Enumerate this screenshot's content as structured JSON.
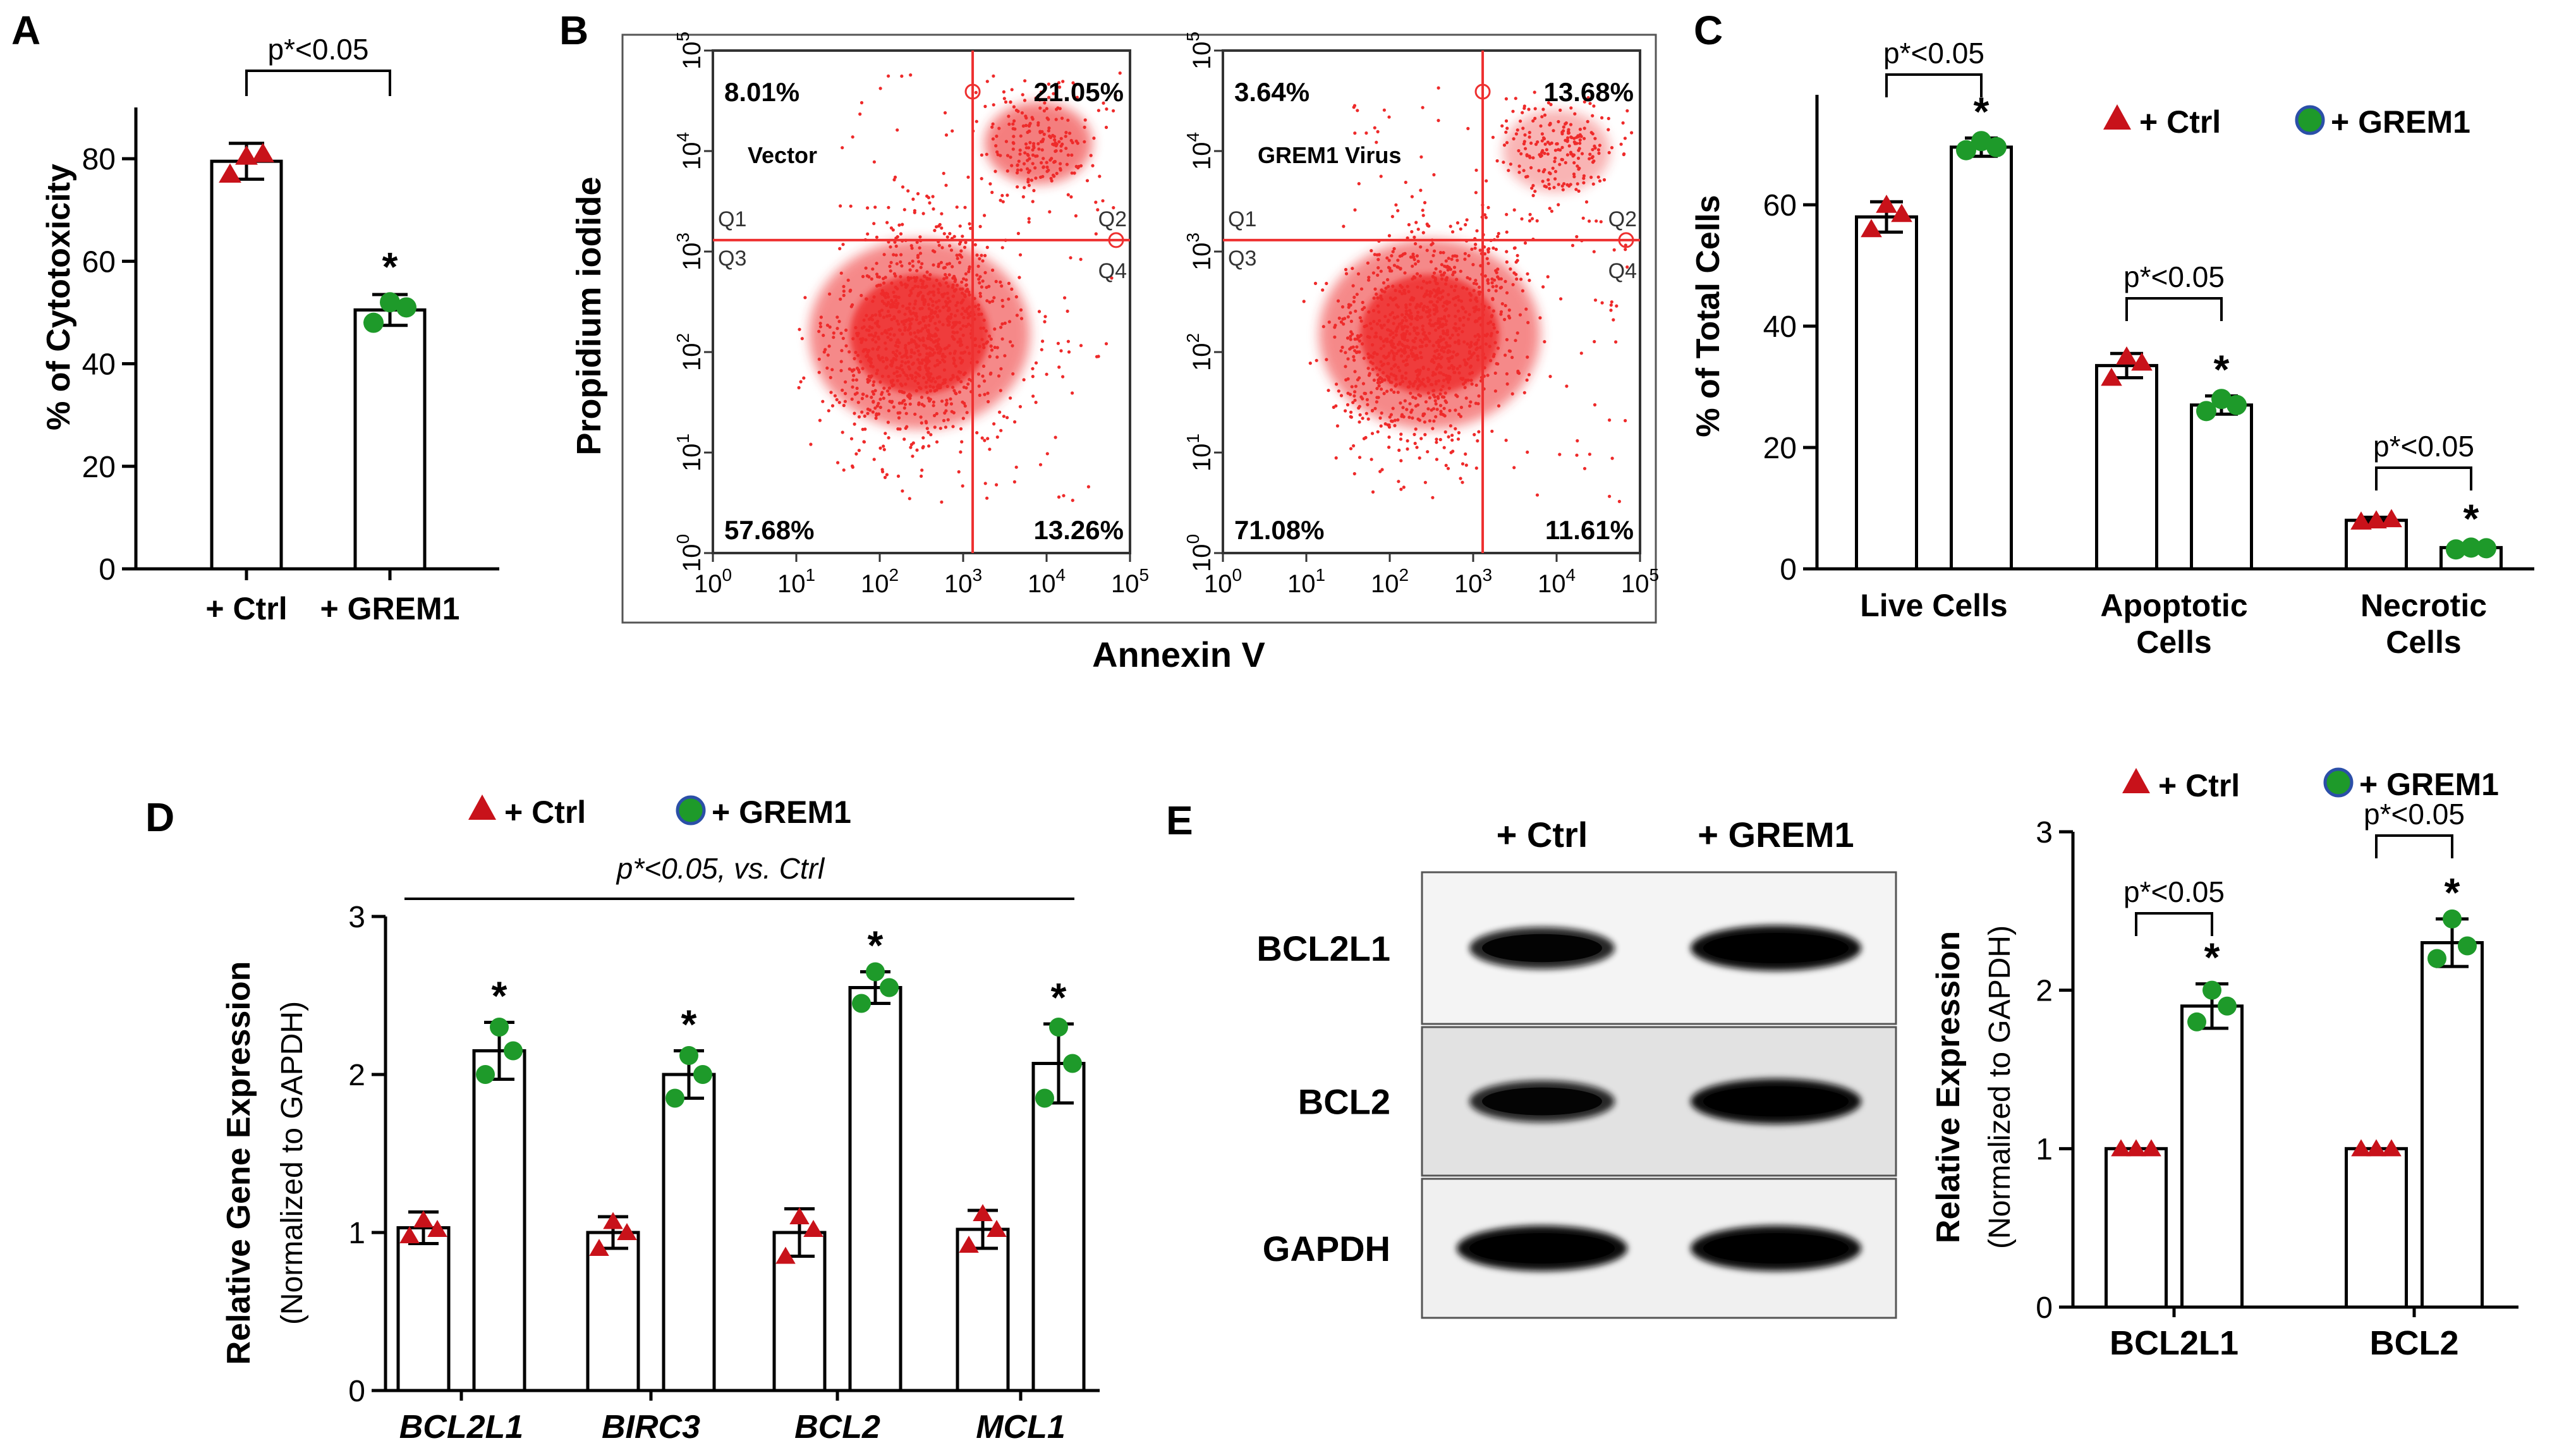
{
  "colors": {
    "ctrl": "#c8121a",
    "grem1": "#1e9a2a",
    "dot_edge": "#2b4fa8",
    "flow": "#ee2a2a",
    "gate": "#ee3030",
    "axis": "#000000"
  },
  "panelA": {
    "letter": "A",
    "chart_data": {
      "type": "bar",
      "ylabel": "% of Cytotoxicity",
      "ylim": [
        0,
        90
      ],
      "yticks": [
        0,
        20,
        40,
        60,
        80
      ],
      "categories": [
        "+ Ctrl",
        "+ GREM1"
      ],
      "values": [
        79.5,
        50.5
      ],
      "errors": [
        3.5,
        3
      ],
      "points": [
        [
          77,
          80.5,
          81
        ],
        [
          48,
          52,
          51
        ]
      ],
      "markers": [
        "triangle",
        "circle"
      ],
      "significance": {
        "label": "p*<0.05",
        "star": "*"
      }
    }
  },
  "panelB": {
    "letter": "B",
    "ylabel": "Propidium iodide",
    "xlabel": "Annexin V",
    "chart_data": {
      "type": "scatter",
      "axis": {
        "xlim": [
          1,
          100000
        ],
        "ylim": [
          1,
          100000
        ],
        "log": true,
        "xticks": [
          "10",
          "10",
          "10",
          "10",
          "10",
          "10"
        ],
        "exponents": [
          "0",
          "1",
          "2",
          "3",
          "4",
          "5"
        ]
      },
      "gates": {
        "x": 1300,
        "y": 1300
      },
      "quadrant_labels": [
        "Q1",
        "Q2",
        "Q3",
        "Q4"
      ],
      "plots": [
        {
          "label": "Vector",
          "q1": "8.01%",
          "q2": "21.05%",
          "q3": "57.68%",
          "q4": "13.26%",
          "main_center": [
            300,
            150
          ],
          "upper_center": [
            8000,
            12000
          ]
        },
        {
          "label": "GREM1 Virus",
          "q1": "3.64%",
          "q2": "13.68%",
          "q3": "71.08%",
          "q4": "11.61%",
          "main_center": [
            300,
            150
          ],
          "upper_center": [
            10000,
            10000
          ]
        }
      ]
    }
  },
  "panelC": {
    "letter": "C",
    "chart_data": {
      "type": "bar",
      "ylabel": "% of Total Cells",
      "ylim": [
        0,
        75
      ],
      "yticks": [
        0,
        20,
        40,
        60
      ],
      "categories": [
        [
          "Live Cells"
        ],
        [
          "Apoptotic",
          "Cells"
        ],
        [
          "Necrotic",
          "Cells"
        ]
      ],
      "series": [
        {
          "name": "+ Ctrl",
          "values": [
            58,
            33.5,
            8
          ],
          "errors": [
            2.5,
            2,
            0.5
          ],
          "points": [
            [
              56,
              60,
              58.5
            ],
            [
              31.5,
              35,
              34
            ],
            [
              7.8,
              8,
              8.2
            ]
          ]
        },
        {
          "name": "+ GREM1",
          "values": [
            69.5,
            27,
            3.5
          ],
          "errors": [
            1.5,
            1.5,
            0.4
          ],
          "points": [
            [
              69,
              70.5,
              69.5
            ],
            [
              26,
              28,
              27
            ],
            [
              3.2,
              3.5,
              3.4
            ]
          ]
        }
      ],
      "significance": [
        {
          "label": "p*<0.05",
          "star": "*"
        },
        {
          "label": "p*<0.05",
          "star": "*"
        },
        {
          "label": "p*<0.05",
          "star": "*"
        }
      ],
      "legend": [
        "+ Ctrl",
        "+ GREM1"
      ]
    }
  },
  "panelD": {
    "letter": "D",
    "chart_data": {
      "type": "bar",
      "ylabel": "Relative Gene Expression",
      "ylabel2": "(Normalized to GAPDH)",
      "ylim": [
        0,
        3
      ],
      "yticks": [
        0,
        1,
        2,
        3
      ],
      "categories": [
        "BCL2L1",
        "BIRC3",
        "BCL2",
        "MCL1"
      ],
      "series": [
        {
          "name": "+ Ctrl",
          "values": [
            1.03,
            1.0,
            1.0,
            1.02
          ],
          "errors": [
            0.1,
            0.1,
            0.15,
            0.12
          ],
          "points": [
            [
              0.98,
              1.08,
              1.02
            ],
            [
              0.9,
              1.07,
              1.0
            ],
            [
              0.85,
              1.1,
              1.02
            ],
            [
              0.92,
              1.12,
              1.02
            ]
          ]
        },
        {
          "name": "+ GREM1",
          "values": [
            2.15,
            2.0,
            2.55,
            2.07
          ],
          "errors": [
            0.18,
            0.15,
            0.1,
            0.25
          ],
          "points": [
            [
              2.0,
              2.3,
              2.15
            ],
            [
              1.85,
              2.12,
              2.0
            ],
            [
              2.45,
              2.65,
              2.55
            ],
            [
              1.85,
              2.3,
              2.07
            ]
          ]
        }
      ],
      "annotation": "p*<0.05, vs. Ctrl",
      "star": "*",
      "legend": [
        "+ Ctrl",
        "+ GREM1"
      ]
    }
  },
  "panelE": {
    "letter": "E",
    "blot": {
      "lanes": [
        "+ Ctrl",
        "+ GREM1"
      ],
      "bands": [
        "BCL2L1",
        "BCL2",
        "GAPDH"
      ]
    },
    "chart_data": {
      "type": "bar",
      "ylabel": "Relative Expression",
      "ylabel2": "(Normalized to GAPDH)",
      "ylim": [
        0,
        3
      ],
      "yticks": [
        0,
        1,
        2,
        3
      ],
      "categories": [
        "BCL2L1",
        "BCL2"
      ],
      "series": [
        {
          "name": "+ Ctrl",
          "values": [
            1.0,
            1.0
          ],
          "errors": [
            0,
            0
          ],
          "points": [
            [
              1,
              1,
              1
            ],
            [
              1,
              1,
              1
            ]
          ]
        },
        {
          "name": "+ GREM1",
          "values": [
            1.9,
            2.3
          ],
          "errors": [
            0.14,
            0.15
          ],
          "points": [
            [
              1.8,
              2.0,
              1.9
            ],
            [
              2.2,
              2.45,
              2.28
            ]
          ]
        }
      ],
      "significance": [
        {
          "label": "p*<0.05",
          "star": "*"
        },
        {
          "label": "p*<0.05",
          "star": "*"
        }
      ],
      "legend": [
        "+ Ctrl",
        "+ GREM1"
      ]
    }
  }
}
